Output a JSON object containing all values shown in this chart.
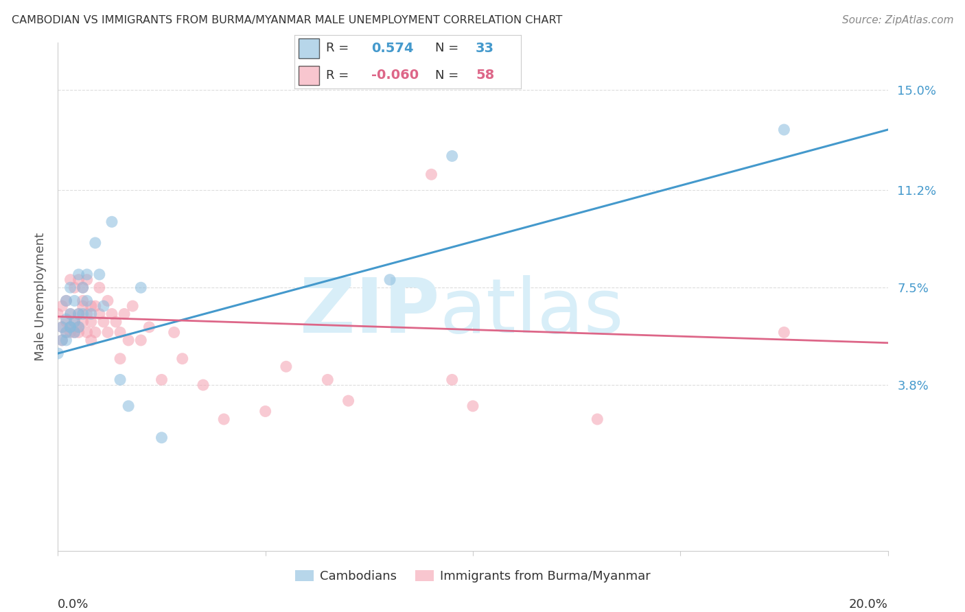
{
  "title": "CAMBODIAN VS IMMIGRANTS FROM BURMA/MYANMAR MALE UNEMPLOYMENT CORRELATION CHART",
  "source": "Source: ZipAtlas.com",
  "ylabel": "Male Unemployment",
  "ytick_labels": [
    "3.8%",
    "7.5%",
    "11.2%",
    "15.0%"
  ],
  "ytick_values": [
    0.038,
    0.075,
    0.112,
    0.15
  ],
  "xlim": [
    0.0,
    0.2
  ],
  "ylim": [
    -0.025,
    0.168
  ],
  "legend_r1": "R =   0.574",
  "legend_n1": "N = 33",
  "legend_r2": "R = -0.060",
  "legend_n2": "N = 58",
  "background_color": "#ffffff",
  "grid_color": "#dddddd",
  "blue_color": "#88bbdd",
  "pink_color": "#f4a0b0",
  "blue_line_color": "#4499cc",
  "pink_line_color": "#dd6688",
  "title_color": "#333333",
  "source_color": "#888888",
  "tick_color": "#4499cc",
  "watermark_color": "#d8eef8",
  "cambodian_x": [
    0.0,
    0.001,
    0.001,
    0.002,
    0.002,
    0.002,
    0.002,
    0.003,
    0.003,
    0.003,
    0.003,
    0.004,
    0.004,
    0.004,
    0.005,
    0.005,
    0.005,
    0.006,
    0.006,
    0.007,
    0.007,
    0.008,
    0.009,
    0.01,
    0.011,
    0.013,
    0.015,
    0.017,
    0.02,
    0.025,
    0.08,
    0.095,
    0.175
  ],
  "cambodian_y": [
    0.05,
    0.055,
    0.06,
    0.058,
    0.063,
    0.055,
    0.07,
    0.06,
    0.065,
    0.06,
    0.075,
    0.058,
    0.062,
    0.07,
    0.065,
    0.08,
    0.06,
    0.065,
    0.075,
    0.07,
    0.08,
    0.065,
    0.092,
    0.08,
    0.068,
    0.1,
    0.04,
    0.03,
    0.075,
    0.018,
    0.078,
    0.125,
    0.135
  ],
  "burma_x": [
    0.0,
    0.001,
    0.001,
    0.001,
    0.002,
    0.002,
    0.002,
    0.003,
    0.003,
    0.003,
    0.003,
    0.004,
    0.004,
    0.004,
    0.005,
    0.005,
    0.005,
    0.005,
    0.006,
    0.006,
    0.006,
    0.006,
    0.007,
    0.007,
    0.007,
    0.008,
    0.008,
    0.008,
    0.009,
    0.009,
    0.01,
    0.01,
    0.011,
    0.012,
    0.012,
    0.013,
    0.014,
    0.015,
    0.015,
    0.016,
    0.017,
    0.018,
    0.02,
    0.022,
    0.025,
    0.028,
    0.03,
    0.035,
    0.04,
    0.05,
    0.055,
    0.065,
    0.07,
    0.09,
    0.095,
    0.1,
    0.13,
    0.175
  ],
  "burma_y": [
    0.065,
    0.06,
    0.068,
    0.055,
    0.062,
    0.07,
    0.058,
    0.06,
    0.065,
    0.058,
    0.078,
    0.062,
    0.075,
    0.058,
    0.065,
    0.06,
    0.078,
    0.058,
    0.068,
    0.062,
    0.075,
    0.07,
    0.058,
    0.065,
    0.078,
    0.068,
    0.055,
    0.062,
    0.058,
    0.068,
    0.065,
    0.075,
    0.062,
    0.058,
    0.07,
    0.065,
    0.062,
    0.058,
    0.048,
    0.065,
    0.055,
    0.068,
    0.055,
    0.06,
    0.04,
    0.058,
    0.048,
    0.038,
    0.025,
    0.028,
    0.045,
    0.04,
    0.032,
    0.118,
    0.04,
    0.03,
    0.025,
    0.058
  ],
  "blue_line_x0": 0.0,
  "blue_line_y0": 0.05,
  "blue_line_x1": 0.2,
  "blue_line_y1": 0.135,
  "pink_line_x0": 0.0,
  "pink_line_y0": 0.064,
  "pink_line_x1": 0.2,
  "pink_line_y1": 0.054
}
